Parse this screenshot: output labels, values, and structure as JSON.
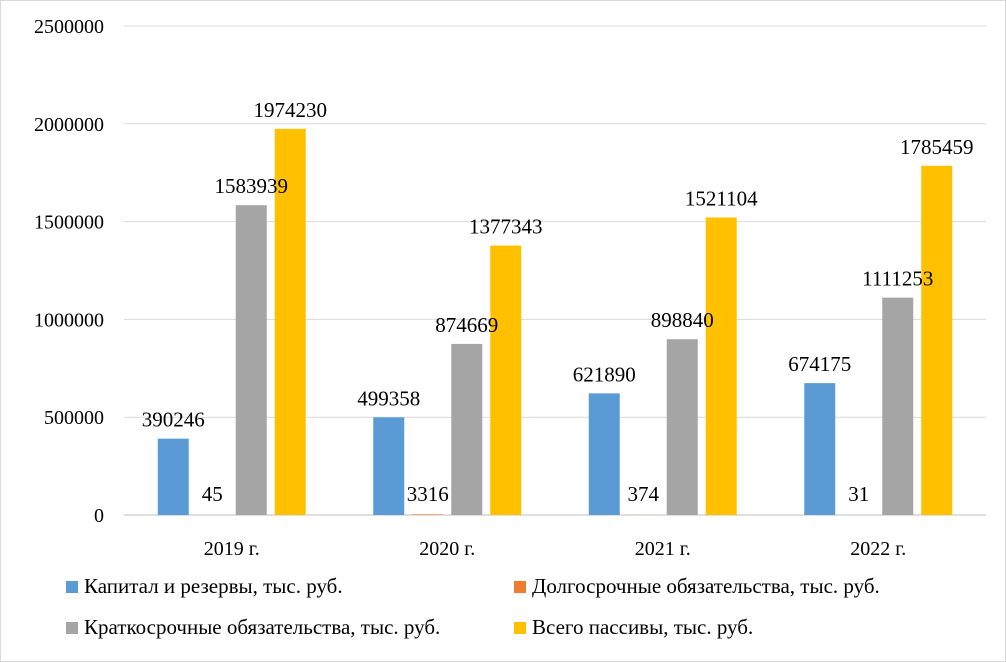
{
  "chart_data": {
    "type": "bar",
    "categories": [
      "2019 г.",
      "2020 г.",
      "2021 г.",
      "2022 г."
    ],
    "series": [
      {
        "name": "Капитал и резервы, тыс. руб.",
        "color": "#5B9BD5",
        "values": [
          390246,
          499358,
          621890,
          674175
        ]
      },
      {
        "name": "Долгосрочные обязательства, тыс. руб.",
        "color": "#ED7D31",
        "values": [
          45,
          3316,
          374,
          31
        ]
      },
      {
        "name": "Краткосрочные обязательства, тыс. руб.",
        "color": "#A5A5A5",
        "values": [
          1583939,
          874669,
          898840,
          1111253
        ]
      },
      {
        "name": "Всего пассивы, тыс. руб.",
        "color": "#FFC000",
        "values": [
          1974230,
          1377343,
          1521104,
          1785459
        ]
      }
    ],
    "title": "",
    "xlabel": "",
    "ylabel": "",
    "ylim": [
      0,
      2500000
    ],
    "yticks": [
      0,
      500000,
      1000000,
      1500000,
      2000000,
      2500000
    ],
    "grid": true,
    "legend_position": "bottom",
    "gridline_color": "#d9d9d9",
    "axis_color": "#bfbfbf"
  }
}
